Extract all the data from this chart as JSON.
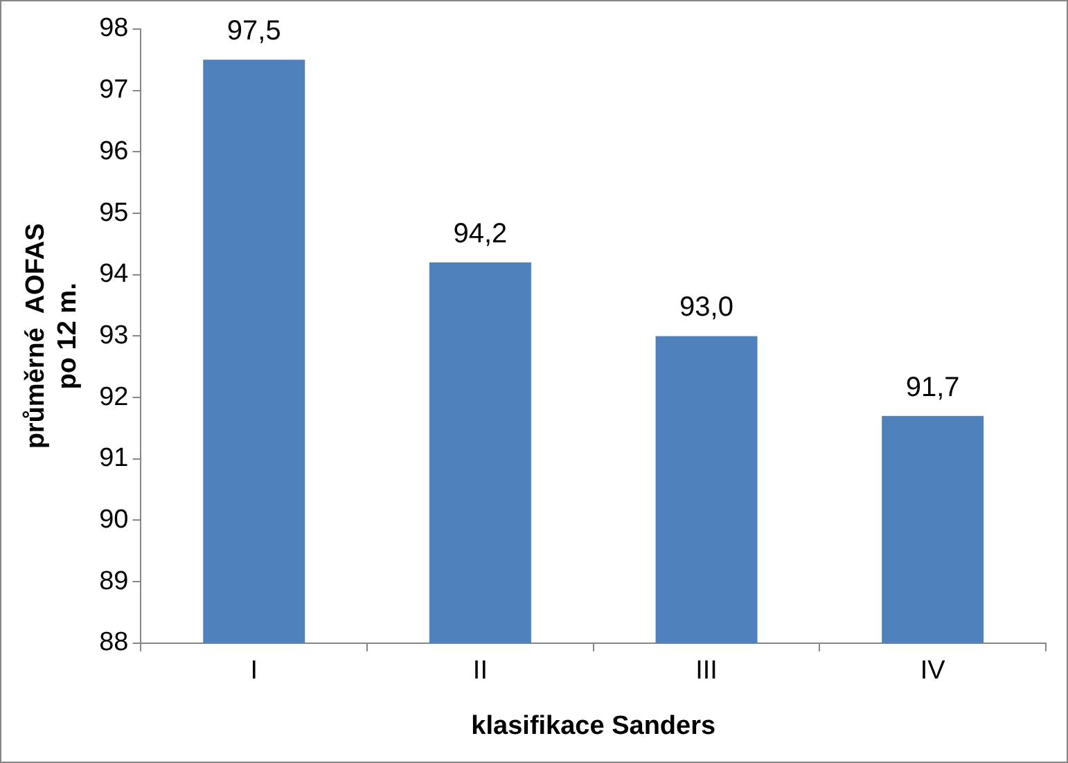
{
  "chart_data": {
    "type": "bar",
    "xlabel": "klasifikace Sanders",
    "ylabel": "průměrné  AOFAS\npo 12 m.",
    "categories": [
      "I",
      "II",
      "III",
      "IV"
    ],
    "values": [
      97.5,
      94.2,
      93.0,
      91.7
    ],
    "value_labels": [
      "97,5",
      "94,2",
      "93,0",
      "91,7"
    ],
    "color": "#4f81bd",
    "ylim": [
      88,
      98
    ],
    "yticks": [
      88,
      89,
      90,
      91,
      92,
      93,
      94,
      95,
      96,
      97,
      98
    ],
    "grid": false,
    "legend": false
  }
}
